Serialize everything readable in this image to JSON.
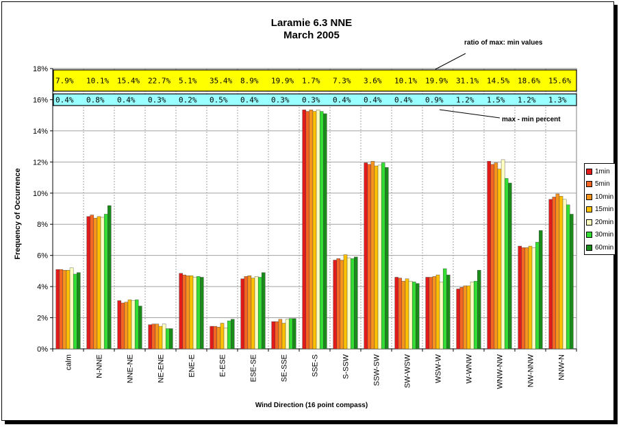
{
  "chart_data": {
    "type": "bar",
    "title": "Laramie 6.3 NNE",
    "subtitle": "March 2005",
    "xlabel": "Wind Direction (16 point compass)",
    "ylabel": "Frequency of Occurrence",
    "ylim": [
      0,
      18
    ],
    "yticks": [
      "0%",
      "2%",
      "4%",
      "6%",
      "8%",
      "10%",
      "12%",
      "14%",
      "16%",
      "18%"
    ],
    "grid": true,
    "legend_position": "right",
    "categories": [
      "calm",
      "N-NNE",
      "NNE-NE",
      "NE-ENE",
      "ENE-E",
      "E-ESE",
      "ESE-SE",
      "SE-SSE",
      "SSE-S",
      "S-SSW",
      "SSW-SW",
      "SW-WSW",
      "WSW-W",
      "W-WNW",
      "WNW-NW",
      "NW-NNW",
      "NNW-N"
    ],
    "series": [
      {
        "name": "1min",
        "color": "#e31a1a",
        "values": [
          5.1,
          8.5,
          3.1,
          1.55,
          4.85,
          1.45,
          4.5,
          1.75,
          15.35,
          5.7,
          11.95,
          4.6,
          4.6,
          3.85,
          12.05,
          6.6,
          9.6
        ]
      },
      {
        "name": "5min",
        "color": "#f26522",
        "values": [
          5.1,
          8.6,
          2.95,
          1.6,
          4.75,
          1.45,
          4.65,
          1.75,
          15.25,
          5.8,
          11.85,
          4.55,
          4.6,
          3.95,
          11.85,
          6.5,
          9.75
        ]
      },
      {
        "name": "10min",
        "color": "#f7941d",
        "values": [
          5.05,
          8.4,
          3.0,
          1.6,
          4.7,
          1.4,
          4.7,
          1.9,
          15.35,
          5.7,
          12.05,
          4.35,
          4.65,
          4.05,
          11.95,
          6.5,
          9.95
        ]
      },
      {
        "name": "15min",
        "color": "#ffc000",
        "values": [
          5.05,
          8.5,
          3.15,
          1.45,
          4.7,
          1.65,
          4.55,
          1.65,
          15.25,
          6.05,
          11.75,
          4.5,
          4.75,
          4.05,
          11.55,
          6.6,
          9.8
        ]
      },
      {
        "name": "20min",
        "color": "#ffffbf",
        "values": [
          5.2,
          8.45,
          3.1,
          1.6,
          4.6,
          1.35,
          4.65,
          1.9,
          15.35,
          5.85,
          11.8,
          4.35,
          4.3,
          4.3,
          12.15,
          6.5,
          9.6
        ]
      },
      {
        "name": "30min",
        "color": "#33dd33",
        "values": [
          4.8,
          8.65,
          3.15,
          1.3,
          4.65,
          1.8,
          4.6,
          1.95,
          15.25,
          5.8,
          11.95,
          4.3,
          5.15,
          4.35,
          10.95,
          6.85,
          9.25
        ]
      },
      {
        "name": "60min",
        "color": "#1a8a1a",
        "values": [
          4.9,
          9.2,
          2.75,
          1.3,
          4.6,
          1.9,
          4.9,
          1.95,
          15.1,
          5.9,
          11.65,
          4.2,
          4.75,
          5.05,
          10.65,
          7.6,
          8.65
        ]
      }
    ],
    "ratio_row": [
      "7.9%",
      "10.1%",
      "15.4%",
      "22.7%",
      "5.1%",
      "35.4%",
      "8.9%",
      "19.9%",
      "1.7%",
      "7.3%",
      "3.6%",
      "10.1%",
      "19.9%",
      "31.1%",
      "14.5%",
      "18.6%",
      "15.6%"
    ],
    "diff_row": [
      "0.4%",
      "0.8%",
      "0.4%",
      "0.3%",
      "0.2%",
      "0.5%",
      "0.4%",
      "0.3%",
      "0.3%",
      "0.4%",
      "0.4%",
      "0.4%",
      "0.9%",
      "1.2%",
      "1.5%",
      "1.2%",
      "1.3%"
    ],
    "ratio_row_color": "#ffff00",
    "diff_row_color": "#99ffff",
    "annotations": [
      "ratio of max: min values",
      "max - min percent"
    ]
  }
}
